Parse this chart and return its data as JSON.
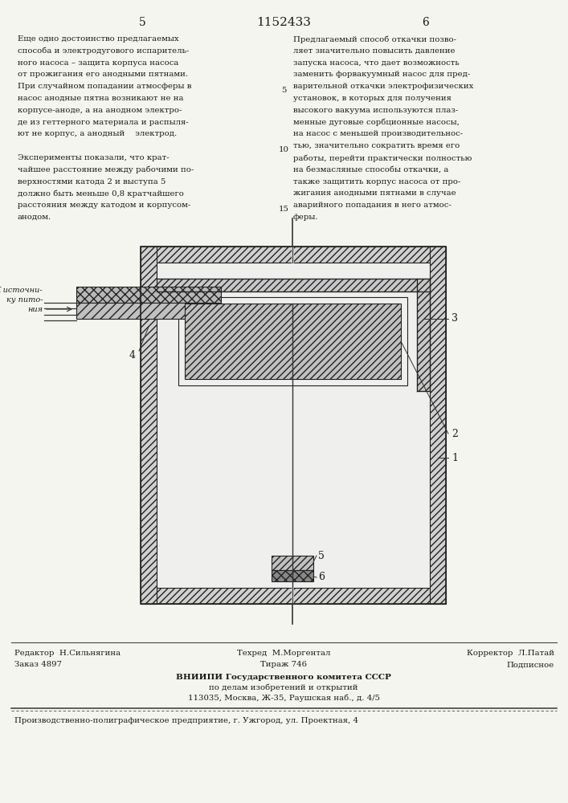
{
  "page_number_left": "5",
  "page_number_center": "1152433",
  "page_number_right": "6",
  "col_left_text": [
    "Еще одно достоинство предлагаемых",
    "способа и электродугового испаритель-",
    "ного насоса – защита корпуса насоса",
    "от прожигания его анодными пятнами.",
    "При случайном попадании атмосферы в",
    "насос анодные пятна возникают не на",
    "корпусе-аноде, а на анодном электро-",
    "де из геттерного материала и распыля-",
    "ют не корпус, а анодный    электрод.",
    "",
    "Эксперименты показали, что крат-",
    "чайшее расстояние между рабочими по-",
    "верхностями катода 2 и выступа 5",
    "должно быть меньше 0,8 кратчайшего",
    "расстояния между катодом и корпусом-",
    "анодом."
  ],
  "col_right_text": [
    "Предлагаемый способ откачки позво-",
    "ляет значительно повысить давление",
    "запуска насоса, что дает возможность",
    "заменить форвакуумный насос для пред-",
    "варительной откачки электрофизических",
    "установок, в которых для получения",
    "высокого вакуума используются плаз-",
    "менные дуговые сорбционные насосы,",
    "на насос с меньшей производительнос-",
    "тью, значительно сократить время его",
    "работы, перейти практически полностью",
    "на безмасляные способы откачки, а",
    "также защитить корпус насоса от про-",
    "жигания анодными пятнами в случае",
    "аварийного попадания в него атмос-",
    "феры."
  ],
  "line_numbers": [
    "5",
    "10",
    "15"
  ],
  "line_number_rows": [
    4,
    9,
    14
  ],
  "footer_editor": "Редактор  Н.Сильнягина",
  "footer_techred": "Техред  М.Моргентал",
  "footer_corrector": "Корректор  Л.Патай",
  "footer_order": "Заказ 4897",
  "footer_tirazh": "Тираж 746",
  "footer_podp": "Подписное",
  "footer_vniip1": "ВНИИПИ Государственного комитета СССР",
  "footer_vniip2": "по делам изобретений и открытий",
  "footer_addr": "113035, Москва, Ж-35, Раушская наб., д. 4/5",
  "footer_print": "Производственно-полиграфическое предприятие, г. Ужгород, ул. Проектная, 4",
  "label_питания_line1": "К источни-",
  "label_питания_line2": "ку пито-",
  "label_питания_line3": "ния",
  "bg_color": "#f5f5f0"
}
